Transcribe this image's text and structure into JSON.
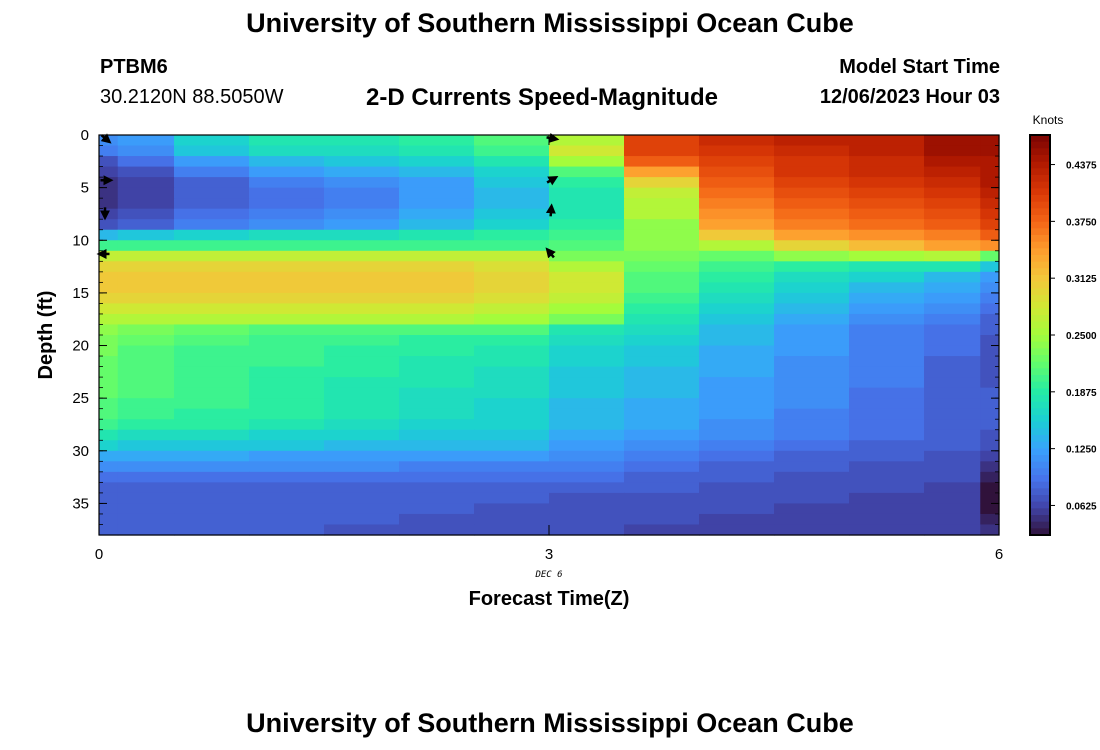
{
  "header": {
    "title": "University of Southern Mississippi Ocean Cube",
    "station_id": "PTBM6",
    "location": "30.2120N  88.5050W",
    "chart_title": "2-D Currents Speed-Magnitude",
    "model_start_label": "Model Start Time",
    "model_start_value": "12/06/2023 Hour 03"
  },
  "footer": {
    "title": "University of Southern Mississippi Ocean Cube"
  },
  "chart_data": {
    "type": "heatmap",
    "title": "2-D Currents Speed-Magnitude",
    "xlabel": "Forecast Time(Z)",
    "ylabel": "Depth (ft)",
    "x_date_label": "DEC 6",
    "xlim": [
      0,
      6
    ],
    "ylim": [
      0,
      38
    ],
    "x_ticks": [
      "0",
      "3",
      "6"
    ],
    "x_tick_values": [
      0,
      3,
      6
    ],
    "y_ticks": [
      "0",
      "5",
      "10",
      "15",
      "20",
      "25",
      "30",
      "35"
    ],
    "y_tick_values": [
      0,
      5,
      10,
      15,
      20,
      25,
      30,
      35
    ],
    "time_columns": [
      0,
      0.25,
      0.75,
      1.25,
      1.75,
      2.25,
      2.75,
      3.25,
      3.75,
      4.25,
      4.75,
      5.25,
      5.75,
      6.0
    ],
    "depth_rows": [
      0,
      1,
      2,
      3,
      4,
      5,
      6,
      7,
      8,
      9,
      10,
      11,
      12,
      13,
      14,
      15,
      16,
      17,
      18,
      19,
      20,
      21,
      22,
      23,
      24,
      25,
      26,
      27,
      28,
      29,
      30,
      31,
      32,
      33,
      34,
      35,
      36,
      37
    ],
    "colorbar": {
      "label": "Knots",
      "range": [
        0.03,
        0.47
      ],
      "ticks": [
        "0.0625",
        "0.1250",
        "0.1875",
        "0.2500",
        "0.3125",
        "0.3750",
        "0.4375"
      ],
      "tick_values": [
        0.0625,
        0.125,
        0.1875,
        0.25,
        0.3125,
        0.375,
        0.4375
      ],
      "colors": [
        "#30123b",
        "#4145ab",
        "#4675ed",
        "#39a2fc",
        "#1bcfd4",
        "#24eca6",
        "#61fc6c",
        "#a4fc3b",
        "#d1e834",
        "#f3c63a",
        "#fe9b2d",
        "#f36315",
        "#d93806",
        "#b11901",
        "#7a0402"
      ]
    },
    "values": [
      [
        0.11,
        0.12,
        0.16,
        0.18,
        0.18,
        0.19,
        0.21,
        0.26,
        0.4,
        0.42,
        0.43,
        0.43,
        0.45,
        0.45
      ],
      [
        0.1,
        0.11,
        0.15,
        0.17,
        0.17,
        0.18,
        0.2,
        0.28,
        0.4,
        0.41,
        0.42,
        0.43,
        0.45,
        0.45
      ],
      [
        0.07,
        0.09,
        0.12,
        0.14,
        0.15,
        0.16,
        0.18,
        0.25,
        0.38,
        0.4,
        0.41,
        0.42,
        0.44,
        0.44
      ],
      [
        0.06,
        0.07,
        0.1,
        0.12,
        0.13,
        0.14,
        0.16,
        0.21,
        0.34,
        0.39,
        0.41,
        0.42,
        0.43,
        0.44
      ],
      [
        0.05,
        0.06,
        0.08,
        0.1,
        0.11,
        0.12,
        0.15,
        0.19,
        0.3,
        0.38,
        0.4,
        0.41,
        0.42,
        0.44
      ],
      [
        0.05,
        0.06,
        0.08,
        0.09,
        0.1,
        0.12,
        0.14,
        0.18,
        0.27,
        0.37,
        0.39,
        0.4,
        0.41,
        0.43
      ],
      [
        0.05,
        0.06,
        0.08,
        0.09,
        0.1,
        0.12,
        0.14,
        0.18,
        0.26,
        0.36,
        0.38,
        0.39,
        0.4,
        0.42
      ],
      [
        0.06,
        0.07,
        0.09,
        0.1,
        0.11,
        0.13,
        0.15,
        0.18,
        0.26,
        0.35,
        0.37,
        0.38,
        0.39,
        0.41
      ],
      [
        0.07,
        0.08,
        0.1,
        0.11,
        0.12,
        0.14,
        0.16,
        0.19,
        0.24,
        0.34,
        0.36,
        0.37,
        0.38,
        0.4
      ],
      [
        0.14,
        0.15,
        0.16,
        0.17,
        0.17,
        0.18,
        0.19,
        0.2,
        0.24,
        0.31,
        0.34,
        0.35,
        0.36,
        0.38
      ],
      [
        0.2,
        0.2,
        0.2,
        0.2,
        0.2,
        0.2,
        0.2,
        0.21,
        0.24,
        0.26,
        0.3,
        0.32,
        0.34,
        0.35
      ],
      [
        0.27,
        0.27,
        0.27,
        0.27,
        0.27,
        0.27,
        0.27,
        0.23,
        0.23,
        0.22,
        0.24,
        0.25,
        0.26,
        0.22
      ],
      [
        0.3,
        0.3,
        0.3,
        0.3,
        0.3,
        0.3,
        0.29,
        0.26,
        0.22,
        0.2,
        0.19,
        0.18,
        0.18,
        0.15
      ],
      [
        0.31,
        0.31,
        0.31,
        0.31,
        0.31,
        0.31,
        0.3,
        0.28,
        0.21,
        0.19,
        0.17,
        0.16,
        0.14,
        0.12
      ],
      [
        0.31,
        0.31,
        0.31,
        0.31,
        0.31,
        0.31,
        0.3,
        0.28,
        0.21,
        0.18,
        0.16,
        0.14,
        0.13,
        0.11
      ],
      [
        0.3,
        0.3,
        0.3,
        0.3,
        0.3,
        0.3,
        0.29,
        0.27,
        0.2,
        0.17,
        0.15,
        0.13,
        0.12,
        0.1
      ],
      [
        0.28,
        0.28,
        0.28,
        0.28,
        0.28,
        0.28,
        0.27,
        0.25,
        0.19,
        0.16,
        0.14,
        0.12,
        0.11,
        0.09
      ],
      [
        0.26,
        0.26,
        0.26,
        0.26,
        0.26,
        0.26,
        0.25,
        0.23,
        0.18,
        0.15,
        0.13,
        0.11,
        0.1,
        0.08
      ],
      [
        0.24,
        0.23,
        0.22,
        0.21,
        0.21,
        0.21,
        0.21,
        0.18,
        0.17,
        0.14,
        0.12,
        0.1,
        0.09,
        0.08
      ],
      [
        0.23,
        0.22,
        0.21,
        0.2,
        0.2,
        0.19,
        0.19,
        0.17,
        0.16,
        0.14,
        0.12,
        0.1,
        0.09,
        0.07
      ],
      [
        0.23,
        0.21,
        0.2,
        0.2,
        0.19,
        0.19,
        0.18,
        0.16,
        0.15,
        0.13,
        0.12,
        0.1,
        0.09,
        0.07
      ],
      [
        0.22,
        0.21,
        0.2,
        0.2,
        0.19,
        0.18,
        0.18,
        0.16,
        0.15,
        0.13,
        0.11,
        0.1,
        0.08,
        0.07
      ],
      [
        0.22,
        0.21,
        0.2,
        0.19,
        0.19,
        0.18,
        0.17,
        0.15,
        0.14,
        0.13,
        0.11,
        0.1,
        0.08,
        0.07
      ],
      [
        0.22,
        0.21,
        0.2,
        0.19,
        0.18,
        0.18,
        0.17,
        0.15,
        0.14,
        0.12,
        0.11,
        0.1,
        0.08,
        0.07
      ],
      [
        0.22,
        0.21,
        0.2,
        0.19,
        0.18,
        0.17,
        0.17,
        0.15,
        0.14,
        0.12,
        0.11,
        0.09,
        0.08,
        0.08
      ],
      [
        0.21,
        0.2,
        0.2,
        0.19,
        0.18,
        0.17,
        0.16,
        0.14,
        0.13,
        0.12,
        0.11,
        0.09,
        0.08,
        0.08
      ],
      [
        0.21,
        0.2,
        0.19,
        0.19,
        0.18,
        0.17,
        0.16,
        0.14,
        0.13,
        0.12,
        0.1,
        0.09,
        0.08,
        0.08
      ],
      [
        0.2,
        0.19,
        0.19,
        0.18,
        0.17,
        0.16,
        0.16,
        0.14,
        0.13,
        0.11,
        0.1,
        0.09,
        0.08,
        0.08
      ],
      [
        0.18,
        0.17,
        0.17,
        0.16,
        0.16,
        0.15,
        0.15,
        0.13,
        0.12,
        0.11,
        0.1,
        0.09,
        0.08,
        0.07
      ],
      [
        0.16,
        0.15,
        0.15,
        0.15,
        0.14,
        0.14,
        0.14,
        0.12,
        0.11,
        0.1,
        0.09,
        0.08,
        0.08,
        0.07
      ],
      [
        0.13,
        0.13,
        0.13,
        0.12,
        0.12,
        0.12,
        0.12,
        0.11,
        0.1,
        0.09,
        0.08,
        0.08,
        0.07,
        0.06
      ],
      [
        0.11,
        0.11,
        0.11,
        0.11,
        0.11,
        0.1,
        0.1,
        0.1,
        0.09,
        0.08,
        0.08,
        0.07,
        0.07,
        0.05
      ],
      [
        0.09,
        0.09,
        0.09,
        0.09,
        0.09,
        0.09,
        0.09,
        0.09,
        0.08,
        0.08,
        0.07,
        0.07,
        0.07,
        0.04
      ],
      [
        0.08,
        0.08,
        0.08,
        0.08,
        0.08,
        0.08,
        0.08,
        0.08,
        0.08,
        0.07,
        0.07,
        0.07,
        0.06,
        0.03
      ],
      [
        0.08,
        0.08,
        0.08,
        0.08,
        0.08,
        0.08,
        0.08,
        0.07,
        0.07,
        0.07,
        0.07,
        0.06,
        0.06,
        0.03
      ],
      [
        0.08,
        0.08,
        0.08,
        0.08,
        0.08,
        0.08,
        0.07,
        0.07,
        0.07,
        0.07,
        0.06,
        0.06,
        0.06,
        0.03
      ],
      [
        0.08,
        0.08,
        0.08,
        0.08,
        0.08,
        0.07,
        0.07,
        0.07,
        0.07,
        0.06,
        0.06,
        0.06,
        0.06,
        0.04
      ],
      [
        0.08,
        0.08,
        0.08,
        0.08,
        0.07,
        0.07,
        0.07,
        0.07,
        0.06,
        0.06,
        0.06,
        0.06,
        0.06,
        0.05
      ]
    ],
    "vectors": [
      {
        "time": 0,
        "depth": 0,
        "angle_deg": 40
      },
      {
        "time": 0,
        "depth": 4,
        "angle_deg": 0
      },
      {
        "time": 0,
        "depth": 7,
        "angle_deg": 90
      },
      {
        "time": 0,
        "depth": 11,
        "angle_deg": 180
      },
      {
        "time": 3,
        "depth": 0,
        "angle_deg": 10
      },
      {
        "time": 3,
        "depth": 4,
        "angle_deg": -30
      },
      {
        "time": 3,
        "depth": 7,
        "angle_deg": -85
      },
      {
        "time": 3,
        "depth": 11,
        "angle_deg": -130
      }
    ]
  }
}
